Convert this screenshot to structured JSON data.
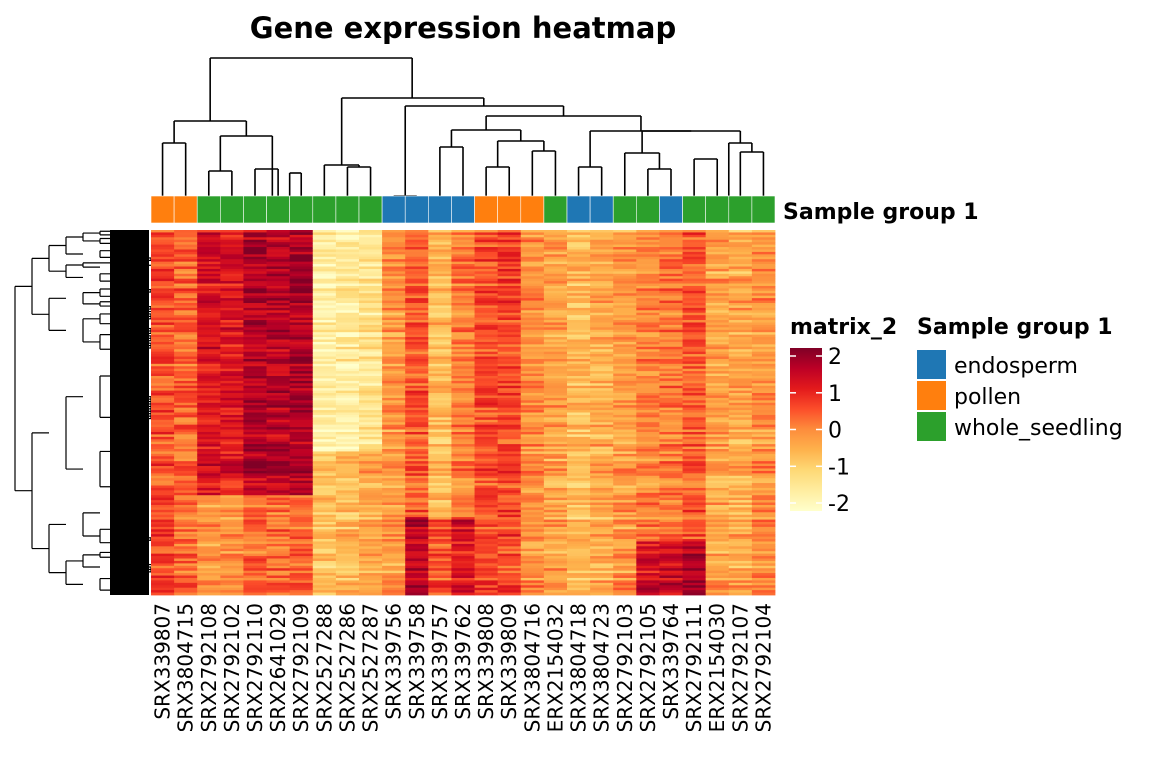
{
  "chart_data": {
    "type": "heatmap",
    "title": "Gene expression heatmap",
    "samples": [
      {
        "id": "SRX339807",
        "group": "pollen"
      },
      {
        "id": "SRX3804715",
        "group": "pollen"
      },
      {
        "id": "SRX2792108",
        "group": "whole_seedling"
      },
      {
        "id": "SRX2792102",
        "group": "whole_seedling"
      },
      {
        "id": "SRX2792110",
        "group": "whole_seedling"
      },
      {
        "id": "SRX2641029",
        "group": "whole_seedling"
      },
      {
        "id": "SRX2792109",
        "group": "whole_seedling"
      },
      {
        "id": "SRX2527288",
        "group": "whole_seedling"
      },
      {
        "id": "SRX2527286",
        "group": "whole_seedling"
      },
      {
        "id": "SRX2527287",
        "group": "whole_seedling"
      },
      {
        "id": "SRX339756",
        "group": "endosperm"
      },
      {
        "id": "SRX339758",
        "group": "endosperm"
      },
      {
        "id": "SRX339757",
        "group": "endosperm"
      },
      {
        "id": "SRX339762",
        "group": "endosperm"
      },
      {
        "id": "SRX339808",
        "group": "pollen"
      },
      {
        "id": "SRX339809",
        "group": "pollen"
      },
      {
        "id": "SRX3804716",
        "group": "pollen"
      },
      {
        "id": "ERX2154032",
        "group": "whole_seedling"
      },
      {
        "id": "SRX3804718",
        "group": "endosperm"
      },
      {
        "id": "SRX3804723",
        "group": "endosperm"
      },
      {
        "id": "SRX2792103",
        "group": "whole_seedling"
      },
      {
        "id": "SRX2792105",
        "group": "whole_seedling"
      },
      {
        "id": "SRX339764",
        "group": "endosperm"
      },
      {
        "id": "SRX2792111",
        "group": "whole_seedling"
      },
      {
        "id": "ERX2154030",
        "group": "whole_seedling"
      },
      {
        "id": "SRX2792107",
        "group": "whole_seedling"
      },
      {
        "id": "SRX2792104",
        "group": "whole_seedling"
      }
    ],
    "column_profiles": [
      0.5,
      0.3,
      1.1,
      1.1,
      1.6,
      1.5,
      1.6,
      -1.6,
      -1.5,
      -1.3,
      -0.2,
      0.4,
      -0.6,
      0.1,
      0.5,
      0.6,
      -0.1,
      -0.3,
      -0.6,
      -0.4,
      -0.2,
      0.0,
      0.1,
      0.4,
      -0.3,
      -0.4,
      -0.1
    ],
    "annotation": {
      "label": "Sample group 1",
      "groups": [
        {
          "name": "endosperm",
          "color": "#1f77b4"
        },
        {
          "name": "pollen",
          "color": "#ff7f0e"
        },
        {
          "name": "whole_seedling",
          "color": "#2ca02c"
        }
      ]
    },
    "color_scale": {
      "name": "matrix_2",
      "min": -2,
      "max": 2,
      "ticks": [
        "2",
        "1",
        "0",
        "-1",
        "-2"
      ],
      "stops": [
        "#ffffcc",
        "#ffeda0",
        "#fed976",
        "#feb24c",
        "#fd8d3c",
        "#fc4e2a",
        "#e31a1c",
        "#bd0026",
        "#800026"
      ]
    },
    "row_dendrogram": true,
    "column_dendrogram": true,
    "legend_position": "right"
  }
}
